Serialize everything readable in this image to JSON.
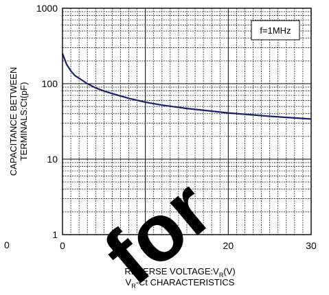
{
  "chart_data": {
    "type": "line",
    "title": "",
    "caption": {
      "main": "V",
      "sub": "R",
      "rest": "-Ct CHARACTERISTICS"
    },
    "xlabel": {
      "main": "REVERSE VOLTAGE:V",
      "sub": "R",
      "tail": "(V)"
    },
    "ylabel": {
      "line1": "CAPACITANCE BETWEEN",
      "line2": "TERMINALS:Ct(pF)"
    },
    "annotation": "f=1MHz",
    "watermark": "for",
    "stray_tick_label": "0",
    "x_scale": "linear",
    "y_scale": "log",
    "xlim": [
      0,
      30
    ],
    "ylim": [
      1,
      1000
    ],
    "x_ticks": [
      {
        "value": 0,
        "label": "0"
      },
      {
        "value": 10,
        "label": "10"
      },
      {
        "value": 20,
        "label": "20"
      },
      {
        "value": 30,
        "label": "30"
      }
    ],
    "y_ticks": [
      {
        "value": 1,
        "label": "1"
      },
      {
        "value": 10,
        "label": "10"
      },
      {
        "value": 100,
        "label": "100"
      },
      {
        "value": 1000,
        "label": "1000"
      }
    ],
    "grid": true,
    "series": [
      {
        "color": "#1a1f6e",
        "x": [
          0,
          0.5,
          1,
          1.5,
          2,
          3,
          4,
          5,
          6,
          8,
          10,
          12,
          15,
          20,
          25,
          30
        ],
        "y": [
          250,
          180,
          148,
          128,
          118,
          100,
          88,
          80,
          74,
          64,
          57,
          52,
          47,
          41,
          37,
          34
        ]
      }
    ]
  }
}
